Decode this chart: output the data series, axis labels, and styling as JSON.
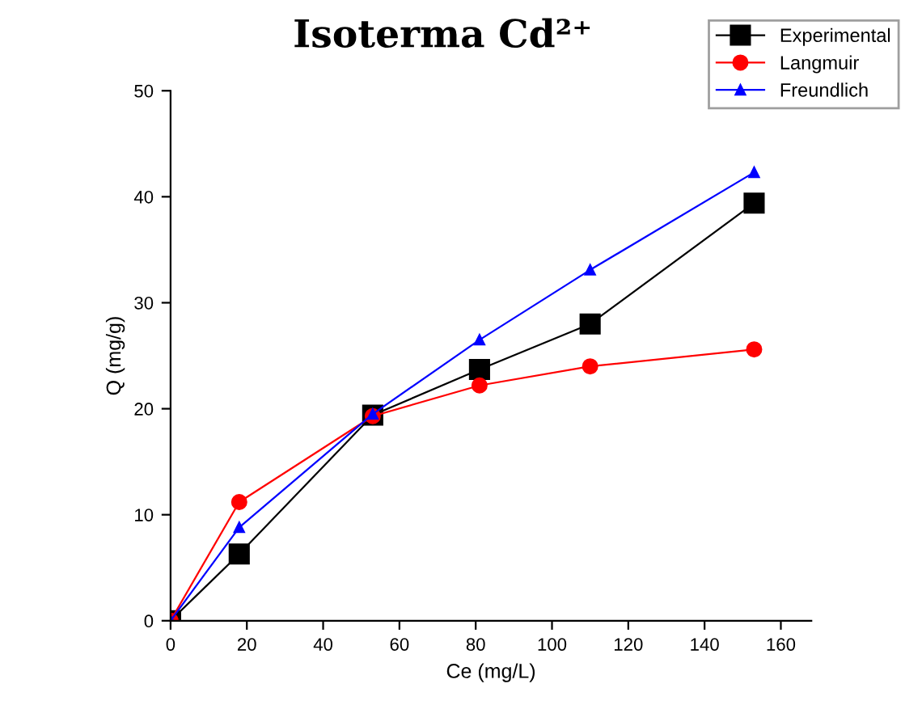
{
  "chart_data": {
    "type": "line",
    "title": "Isoterma Cd²⁺",
    "xlabel": "Ce (mg/L)",
    "ylabel": "Q (mg/g)",
    "xlim": [
      0,
      168
    ],
    "xticks": [
      0,
      20,
      40,
      60,
      80,
      100,
      120,
      140,
      160
    ],
    "ylim": [
      0,
      50
    ],
    "yticks": [
      0,
      10,
      20,
      30,
      40,
      50
    ],
    "grid": false,
    "legend": "top right",
    "series": [
      {
        "name": "Experimental",
        "color": "#000000",
        "marker": "square",
        "x": [
          0,
          18,
          53,
          81,
          110,
          153
        ],
        "values": [
          0,
          6.3,
          19.4,
          23.7,
          28,
          39.4
        ]
      },
      {
        "name": "Langmuir",
        "color": "#ff0000",
        "marker": "circle",
        "x": [
          0,
          18,
          53,
          81,
          110,
          153
        ],
        "values": [
          0,
          11.2,
          19.3,
          22.2,
          24,
          25.6
        ]
      },
      {
        "name": "Freundlich",
        "color": "#0000ff",
        "marker": "triangle",
        "x": [
          0,
          18,
          53,
          81,
          110,
          153
        ],
        "values": [
          0,
          8.8,
          19.5,
          26.5,
          33.1,
          42.3
        ]
      }
    ]
  }
}
